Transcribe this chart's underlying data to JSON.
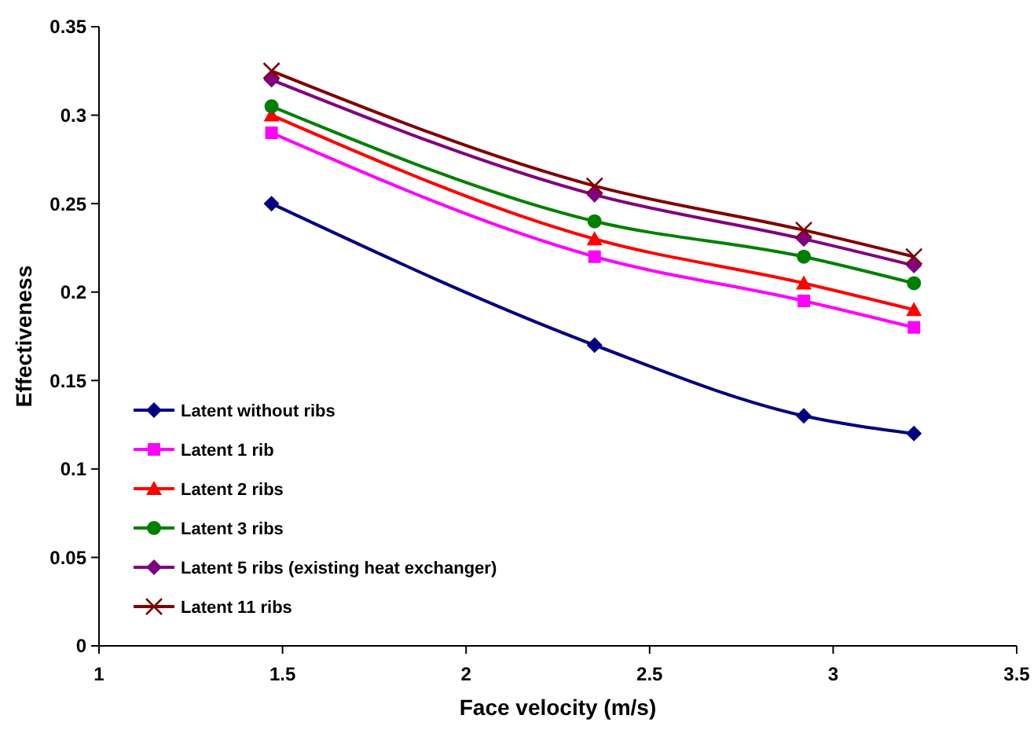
{
  "chart_data": {
    "type": "line",
    "xlabel": "Face velocity (m/s)",
    "ylabel": "Effectiveness",
    "x": [
      1.47,
      2.35,
      2.92,
      3.22
    ],
    "xlim": [
      1,
      3.5
    ],
    "xticks": [
      1,
      1.5,
      2,
      2.5,
      3,
      3.5
    ],
    "ylim": [
      0,
      0.35
    ],
    "yticks": [
      0,
      0.05,
      0.1,
      0.15,
      0.2,
      0.25,
      0.3,
      0.35
    ],
    "grid": false,
    "legend": "bottom left",
    "line_style": "solid",
    "series": [
      {
        "name": "Latent without ribs",
        "color": "#000080",
        "marker": "diamond",
        "values": [
          0.25,
          0.17,
          0.13,
          0.12
        ]
      },
      {
        "name": "Latent 1 rib",
        "color": "#ff00ff",
        "marker": "square",
        "values": [
          0.29,
          0.22,
          0.195,
          0.18
        ]
      },
      {
        "name": "Latent 2 ribs",
        "color": "#ff0000",
        "marker": "triangle",
        "values": [
          0.3,
          0.23,
          0.205,
          0.19
        ]
      },
      {
        "name": "Latent 3 ribs",
        "color": "#008000",
        "marker": "circle",
        "values": [
          0.305,
          0.24,
          0.22,
          0.205
        ]
      },
      {
        "name": "Latent 5 ribs (existing heat exchanger)",
        "color": "#800080",
        "marker": "diamond",
        "values": [
          0.32,
          0.255,
          0.23,
          0.215
        ]
      },
      {
        "name": "Latent 11 ribs",
        "color": "#800000",
        "marker": "cross",
        "values": [
          0.325,
          0.26,
          0.235,
          0.22
        ]
      }
    ]
  }
}
